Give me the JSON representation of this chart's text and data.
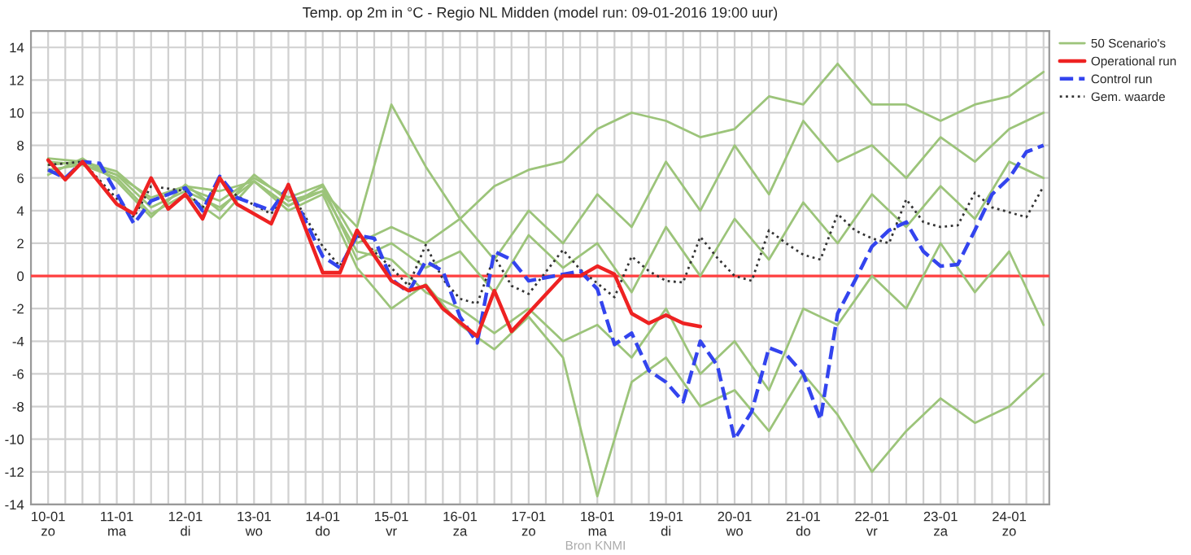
{
  "chart_data": {
    "type": "line",
    "title": "Temp. op 2m in °C - Regio NL Midden (model run: 09-01-2016 19:00 uur)",
    "annotations": [
      "Bron KNMI"
    ],
    "xlim": [
      "2016-01-09T18:00",
      "2016-01-24T14:00"
    ],
    "ylim": [
      -14,
      15
    ],
    "xticks": [
      {
        "value": "2016-01-10T00:00",
        "label": "10-01\nzo"
      },
      {
        "value": "2016-01-10T06:00",
        "label": null
      },
      {
        "value": "2016-01-10T12:00",
        "label": null
      },
      {
        "value": "2016-01-10T18:00",
        "label": null
      },
      {
        "value": "2016-01-11T00:00",
        "label": "11-01\nma"
      },
      {
        "value": "2016-01-11T06:00",
        "label": null
      },
      {
        "value": "2016-01-11T12:00",
        "label": null
      },
      {
        "value": "2016-01-11T18:00",
        "label": null
      },
      {
        "value": "2016-01-12T00:00",
        "label": "12-01\ndi"
      },
      {
        "value": "2016-01-12T06:00",
        "label": null
      },
      {
        "value": "2016-01-12T12:00",
        "label": null
      },
      {
        "value": "2016-01-12T18:00",
        "label": null
      },
      {
        "value": "2016-01-13T00:00",
        "label": "13-01\nwo"
      },
      {
        "value": "2016-01-13T06:00",
        "label": null
      },
      {
        "value": "2016-01-13T12:00",
        "label": null
      },
      {
        "value": "2016-01-13T18:00",
        "label": null
      },
      {
        "value": "2016-01-14T00:00",
        "label": "14-01\ndo"
      },
      {
        "value": "2016-01-14T06:00",
        "label": null
      },
      {
        "value": "2016-01-14T12:00",
        "label": null
      },
      {
        "value": "2016-01-14T18:00",
        "label": null
      },
      {
        "value": "2016-01-15T00:00",
        "label": "15-01\nvr"
      },
      {
        "value": "2016-01-15T06:00",
        "label": null
      },
      {
        "value": "2016-01-15T12:00",
        "label": null
      },
      {
        "value": "2016-01-15T18:00",
        "label": null
      },
      {
        "value": "2016-01-16T00:00",
        "label": "16-01\nza"
      },
      {
        "value": "2016-01-16T06:00",
        "label": null
      },
      {
        "value": "2016-01-16T12:00",
        "label": null
      },
      {
        "value": "2016-01-16T18:00",
        "label": null
      },
      {
        "value": "2016-01-17T00:00",
        "label": "17-01\nzo"
      },
      {
        "value": "2016-01-17T06:00",
        "label": null
      },
      {
        "value": "2016-01-17T12:00",
        "label": null
      },
      {
        "value": "2016-01-17T18:00",
        "label": null
      },
      {
        "value": "2016-01-18T00:00",
        "label": "18-01\nma"
      },
      {
        "value": "2016-01-18T06:00",
        "label": null
      },
      {
        "value": "2016-01-18T12:00",
        "label": null
      },
      {
        "value": "2016-01-18T18:00",
        "label": null
      },
      {
        "value": "2016-01-19T00:00",
        "label": "19-01\ndi"
      },
      {
        "value": "2016-01-19T06:00",
        "label": null
      },
      {
        "value": "2016-01-19T12:00",
        "label": null
      },
      {
        "value": "2016-01-19T18:00",
        "label": null
      },
      {
        "value": "2016-01-20T00:00",
        "label": "20-01\nwo"
      },
      {
        "value": "2016-01-20T06:00",
        "label": null
      },
      {
        "value": "2016-01-20T12:00",
        "label": null
      },
      {
        "value": "2016-01-20T18:00",
        "label": null
      },
      {
        "value": "2016-01-21T00:00",
        "label": "21-01\ndo"
      },
      {
        "value": "2016-01-21T06:00",
        "label": null
      },
      {
        "value": "2016-01-21T12:00",
        "label": null
      },
      {
        "value": "2016-01-21T18:00",
        "label": null
      },
      {
        "value": "2016-01-22T00:00",
        "label": "22-01\nvr"
      },
      {
        "value": "2016-01-22T06:00",
        "label": null
      },
      {
        "value": "2016-01-22T12:00",
        "label": null
      },
      {
        "value": "2016-01-22T18:00",
        "label": null
      },
      {
        "value": "2016-01-23T00:00",
        "label": "23-01\nza"
      },
      {
        "value": "2016-01-23T06:00",
        "label": null
      },
      {
        "value": "2016-01-23T12:00",
        "label": null
      },
      {
        "value": "2016-01-23T18:00",
        "label": null
      },
      {
        "value": "2016-01-24T00:00",
        "label": "24-01\nzo"
      },
      {
        "value": "2016-01-24T06:00",
        "label": null
      },
      {
        "value": "2016-01-24T12:00",
        "label": null
      }
    ],
    "yticks": [
      -14,
      -12,
      -10,
      -8,
      -6,
      -4,
      -2,
      0,
      2,
      4,
      6,
      8,
      10,
      12,
      14
    ],
    "grid": true,
    "legend": "top right",
    "marker": "none",
    "ref_lines": [
      {
        "axis": "y",
        "value": 0,
        "color": "#ff4040"
      }
    ],
    "series": [
      {
        "name": "50 Scenario's",
        "color": "#9cc47a",
        "line_style": "solid",
        "x": [
          "2016-01-10T00:00",
          "2016-01-10T12:00",
          "2016-01-11T00:00",
          "2016-01-11T12:00",
          "2016-01-12T00:00",
          "2016-01-12T12:00",
          "2016-01-13T00:00",
          "2016-01-13T12:00",
          "2016-01-14T00:00",
          "2016-01-14T12:00",
          "2016-01-15T00:00",
          "2016-01-15T12:00",
          "2016-01-16T00:00",
          "2016-01-16T12:00",
          "2016-01-17T00:00",
          "2016-01-17T12:00",
          "2016-01-18T00:00",
          "2016-01-18T12:00",
          "2016-01-19T00:00",
          "2016-01-19T12:00",
          "2016-01-20T00:00",
          "2016-01-20T12:00",
          "2016-01-21T00:00",
          "2016-01-21T12:00",
          "2016-01-22T00:00",
          "2016-01-22T12:00",
          "2016-01-23T00:00",
          "2016-01-23T12:00",
          "2016-01-24T00:00",
          "2016-01-24T12:00"
        ],
        "values": [
          7.0,
          6.8,
          6.2,
          4.8,
          5.5,
          5.2,
          5.8,
          4.3,
          5.2,
          3.0,
          10.5,
          6.7,
          3.5,
          5.5,
          6.5,
          7.0,
          9.0,
          10.0,
          9.5,
          8.5,
          9.0,
          11.0,
          10.5,
          13.0,
          10.5,
          10.5,
          9.5,
          10.5,
          11.0,
          12.5
        ]
      },
      {
        "color": "#9cc47a",
        "line_style": "solid",
        "x": [
          "2016-01-10T00:00",
          "2016-01-10T12:00",
          "2016-01-11T00:00",
          "2016-01-11T12:00",
          "2016-01-12T00:00",
          "2016-01-12T12:00",
          "2016-01-13T00:00",
          "2016-01-13T12:00",
          "2016-01-14T00:00",
          "2016-01-14T12:00",
          "2016-01-15T00:00",
          "2016-01-15T12:00",
          "2016-01-16T00:00",
          "2016-01-16T12:00",
          "2016-01-17T00:00",
          "2016-01-17T12:00",
          "2016-01-18T00:00",
          "2016-01-18T12:00",
          "2016-01-19T00:00",
          "2016-01-19T12:00",
          "2016-01-20T00:00",
          "2016-01-20T12:00",
          "2016-01-21T00:00",
          "2016-01-21T12:00",
          "2016-01-22T00:00",
          "2016-01-22T12:00",
          "2016-01-23T00:00",
          "2016-01-23T12:00",
          "2016-01-24T00:00",
          "2016-01-24T12:00"
        ],
        "values": [
          6.5,
          6.8,
          6.0,
          3.8,
          5.0,
          3.5,
          5.8,
          4.0,
          5.0,
          0.5,
          -2.0,
          -0.5,
          -3.0,
          -4.5,
          -2.5,
          -5.0,
          -13.5,
          -6.5,
          -5.0,
          -8.0,
          -7.0,
          -9.5,
          -6.0,
          -8.5,
          -12.0,
          -9.5,
          -7.5,
          -9.0,
          -8.0,
          -6.0
        ]
      },
      {
        "color": "#9cc47a",
        "line_style": "solid",
        "x": [
          "2016-01-10T00:00",
          "2016-01-10T12:00",
          "2016-01-11T00:00",
          "2016-01-11T12:00",
          "2016-01-12T00:00",
          "2016-01-12T12:00",
          "2016-01-13T00:00",
          "2016-01-13T12:00",
          "2016-01-14T00:00",
          "2016-01-14T12:00",
          "2016-01-15T00:00",
          "2016-01-15T12:00",
          "2016-01-16T00:00",
          "2016-01-16T12:00",
          "2016-01-17T00:00",
          "2016-01-17T12:00",
          "2016-01-18T00:00",
          "2016-01-18T12:00",
          "2016-01-19T00:00",
          "2016-01-19T12:00",
          "2016-01-20T00:00",
          "2016-01-20T12:00",
          "2016-01-21T00:00",
          "2016-01-21T12:00",
          "2016-01-22T00:00",
          "2016-01-22T12:00",
          "2016-01-23T00:00",
          "2016-01-23T12:00",
          "2016-01-24T00:00",
          "2016-01-24T12:00"
        ],
        "values": [
          6.8,
          7.0,
          6.2,
          4.2,
          5.2,
          4.2,
          5.8,
          4.3,
          5.5,
          1.0,
          2.0,
          0.5,
          1.5,
          -1.0,
          2.5,
          0.5,
          2.0,
          -1.0,
          3.0,
          0.0,
          3.5,
          1.0,
          4.5,
          2.0,
          5.0,
          3.0,
          5.5,
          3.5,
          7.0,
          6.0
        ]
      },
      {
        "color": "#9cc47a",
        "line_style": "solid",
        "x": [
          "2016-01-10T00:00",
          "2016-01-10T12:00",
          "2016-01-11T00:00",
          "2016-01-11T12:00",
          "2016-01-12T00:00",
          "2016-01-12T12:00",
          "2016-01-13T00:00",
          "2016-01-13T12:00",
          "2016-01-14T00:00",
          "2016-01-14T12:00",
          "2016-01-15T00:00",
          "2016-01-15T12:00",
          "2016-01-16T00:00",
          "2016-01-16T12:00",
          "2016-01-17T00:00",
          "2016-01-17T12:00",
          "2016-01-18T00:00",
          "2016-01-18T12:00",
          "2016-01-19T00:00",
          "2016-01-19T12:00",
          "2016-01-20T00:00",
          "2016-01-20T12:00",
          "2016-01-21T00:00",
          "2016-01-21T12:00",
          "2016-01-22T00:00",
          "2016-01-22T12:00",
          "2016-01-23T00:00",
          "2016-01-23T12:00",
          "2016-01-24T00:00",
          "2016-01-24T12:00"
        ],
        "values": [
          6.2,
          7.2,
          5.8,
          3.6,
          5.6,
          4.0,
          6.2,
          4.6,
          5.2,
          1.5,
          1.0,
          -1.0,
          -2.0,
          -3.5,
          -2.0,
          -4.0,
          -3.0,
          -5.0,
          -2.0,
          -6.0,
          -4.0,
          -7.0,
          -2.0,
          -3.0,
          0.0,
          -2.0,
          2.0,
          -1.0,
          1.5,
          -3.0
        ]
      },
      {
        "color": "#9cc47a",
        "line_style": "solid",
        "x": [
          "2016-01-10T00:00",
          "2016-01-10T12:00",
          "2016-01-11T00:00",
          "2016-01-11T12:00",
          "2016-01-12T00:00",
          "2016-01-12T12:00",
          "2016-01-13T00:00",
          "2016-01-13T12:00",
          "2016-01-14T00:00",
          "2016-01-14T12:00",
          "2016-01-15T00:00",
          "2016-01-15T12:00",
          "2016-01-16T00:00",
          "2016-01-16T12:00",
          "2016-01-17T00:00",
          "2016-01-17T12:00",
          "2016-01-18T00:00",
          "2016-01-18T12:00",
          "2016-01-19T00:00",
          "2016-01-19T12:00",
          "2016-01-20T00:00",
          "2016-01-20T12:00",
          "2016-01-21T00:00",
          "2016-01-21T12:00",
          "2016-01-22T00:00",
          "2016-01-22T12:00",
          "2016-01-23T00:00",
          "2016-01-23T12:00",
          "2016-01-24T00:00",
          "2016-01-24T12:00"
        ],
        "values": [
          7.2,
          7.0,
          6.4,
          4.6,
          5.4,
          4.6,
          6.0,
          4.8,
          5.6,
          2.0,
          3.0,
          2.0,
          3.5,
          1.0,
          4.0,
          2.0,
          5.0,
          3.0,
          7.0,
          4.0,
          8.0,
          5.0,
          9.5,
          7.0,
          8.0,
          6.0,
          8.5,
          7.0,
          9.0,
          10.0
        ]
      },
      {
        "name": "Gem. waarde",
        "color": "#333333",
        "line_style": "dotted",
        "x": [
          "2016-01-10T00:00",
          "2016-01-10T12:00",
          "2016-01-11T06:00",
          "2016-01-11T12:00",
          "2016-01-12T00:00",
          "2016-01-12T06:00",
          "2016-01-12T12:00",
          "2016-01-12T18:00",
          "2016-01-13T06:00",
          "2016-01-13T12:00",
          "2016-01-14T00:00",
          "2016-01-14T06:00",
          "2016-01-14T12:00",
          "2016-01-15T00:00",
          "2016-01-15T06:00",
          "2016-01-15T12:00",
          "2016-01-15T18:00",
          "2016-01-16T00:00",
          "2016-01-16T06:00",
          "2016-01-16T12:00",
          "2016-01-16T18:00",
          "2016-01-17T00:00",
          "2016-01-17T12:00",
          "2016-01-17T18:00",
          "2016-01-18T06:00",
          "2016-01-18T12:00",
          "2016-01-18T18:00",
          "2016-01-19T00:00",
          "2016-01-19T06:00",
          "2016-01-19T12:00",
          "2016-01-19T18:00",
          "2016-01-20T00:00",
          "2016-01-20T06:00",
          "2016-01-20T12:00",
          "2016-01-20T18:00",
          "2016-01-21T00:00",
          "2016-01-21T06:00",
          "2016-01-21T12:00",
          "2016-01-21T18:00",
          "2016-01-22T00:00",
          "2016-01-22T06:00",
          "2016-01-22T12:00",
          "2016-01-22T18:00",
          "2016-01-23T00:00",
          "2016-01-23T06:00",
          "2016-01-23T12:00",
          "2016-01-23T18:00",
          "2016-01-24T00:00",
          "2016-01-24T06:00",
          "2016-01-24T12:00"
        ],
        "values": [
          6.8,
          7.0,
          3.6,
          5.5,
          5.2,
          4.2,
          5.9,
          4.9,
          3.8,
          5.4,
          1.8,
          0.6,
          2.5,
          0.5,
          -0.6,
          1.9,
          -0.2,
          -1.4,
          -1.7,
          1.2,
          -0.6,
          -1.1,
          1.6,
          0.4,
          -1.3,
          1.2,
          0.3,
          -0.3,
          -0.4,
          2.4,
          1.1,
          0.0,
          -0.3,
          2.8,
          2.0,
          1.3,
          1.0,
          3.8,
          2.8,
          2.3,
          2.0,
          4.7,
          3.3,
          3.0,
          3.1,
          5.1,
          4.2,
          3.9,
          3.6,
          5.5
        ]
      },
      {
        "name": "Control run",
        "color": "#3344ee",
        "line_style": "dashed",
        "x": [
          "2016-01-10T00:00",
          "2016-01-10T06:00",
          "2016-01-10T12:00",
          "2016-01-10T18:00",
          "2016-01-11T06:00",
          "2016-01-11T12:00",
          "2016-01-12T00:00",
          "2016-01-12T06:00",
          "2016-01-12T12:00",
          "2016-01-12T18:00",
          "2016-01-13T06:00",
          "2016-01-13T12:00",
          "2016-01-14T00:00",
          "2016-01-14T06:00",
          "2016-01-14T12:00",
          "2016-01-14T18:00",
          "2016-01-15T00:00",
          "2016-01-15T06:00",
          "2016-01-15T12:00",
          "2016-01-15T18:00",
          "2016-01-16T00:00",
          "2016-01-16T06:00",
          "2016-01-16T12:00",
          "2016-01-16T18:00",
          "2016-01-17T00:00",
          "2016-01-17T12:00",
          "2016-01-17T18:00",
          "2016-01-18T00:00",
          "2016-01-18T06:00",
          "2016-01-18T12:00",
          "2016-01-18T18:00",
          "2016-01-19T00:00",
          "2016-01-19T06:00",
          "2016-01-19T12:00",
          "2016-01-19T18:00",
          "2016-01-20T00:00",
          "2016-01-20T06:00",
          "2016-01-20T12:00",
          "2016-01-20T18:00",
          "2016-01-21T00:00",
          "2016-01-21T06:00",
          "2016-01-21T12:00",
          "2016-01-21T18:00",
          "2016-01-22T00:00",
          "2016-01-22T06:00",
          "2016-01-22T12:00",
          "2016-01-22T18:00",
          "2016-01-23T00:00",
          "2016-01-23T06:00",
          "2016-01-23T12:00",
          "2016-01-23T18:00",
          "2016-01-24T00:00",
          "2016-01-24T06:00",
          "2016-01-24T12:00"
        ],
        "values": [
          6.5,
          6.0,
          7.0,
          6.9,
          3.2,
          4.6,
          5.4,
          4.0,
          6.1,
          4.8,
          4.0,
          5.5,
          1.2,
          0.5,
          2.5,
          2.3,
          -0.2,
          -1.0,
          0.9,
          0.3,
          -2.5,
          -4.1,
          1.5,
          1.0,
          -0.3,
          0.1,
          0.3,
          -0.8,
          -4.2,
          -3.5,
          -5.8,
          -6.5,
          -7.7,
          -4.0,
          -5.5,
          -10.0,
          -8.3,
          -4.4,
          -4.8,
          -6.0,
          -8.8,
          -2.3,
          -0.3,
          1.8,
          2.8,
          3.3,
          1.5,
          0.6,
          0.7,
          2.8,
          5.0,
          6.0,
          7.6,
          8.0
        ]
      },
      {
        "name": "Operational run",
        "color": "#ee2222",
        "line_style": "solid",
        "x": [
          "2016-01-10T00:00",
          "2016-01-10T06:00",
          "2016-01-10T12:00",
          "2016-01-11T00:00",
          "2016-01-11T06:00",
          "2016-01-11T12:00",
          "2016-01-11T18:00",
          "2016-01-12T00:00",
          "2016-01-12T06:00",
          "2016-01-12T12:00",
          "2016-01-12T18:00",
          "2016-01-13T06:00",
          "2016-01-13T12:00",
          "2016-01-14T00:00",
          "2016-01-14T06:00",
          "2016-01-14T12:00",
          "2016-01-15T00:00",
          "2016-01-15T06:00",
          "2016-01-15T12:00",
          "2016-01-15T18:00",
          "2016-01-16T06:00",
          "2016-01-16T12:00",
          "2016-01-16T18:00",
          "2016-01-17T12:00",
          "2016-01-17T18:00",
          "2016-01-18T00:00",
          "2016-01-18T06:00",
          "2016-01-18T12:00",
          "2016-01-18T18:00",
          "2016-01-19T00:00",
          "2016-01-19T06:00",
          "2016-01-19T12:00"
        ],
        "values": [
          7.1,
          5.9,
          7.0,
          4.4,
          3.8,
          6.0,
          4.1,
          5.0,
          3.5,
          6.0,
          4.4,
          3.2,
          5.6,
          0.2,
          0.2,
          2.8,
          -0.3,
          -0.9,
          -0.6,
          -2.0,
          -3.7,
          -0.9,
          -3.4,
          0.0,
          0.0,
          0.6,
          0.1,
          -2.3,
          -2.9,
          -2.4,
          -2.9,
          -3.1
        ]
      }
    ]
  }
}
